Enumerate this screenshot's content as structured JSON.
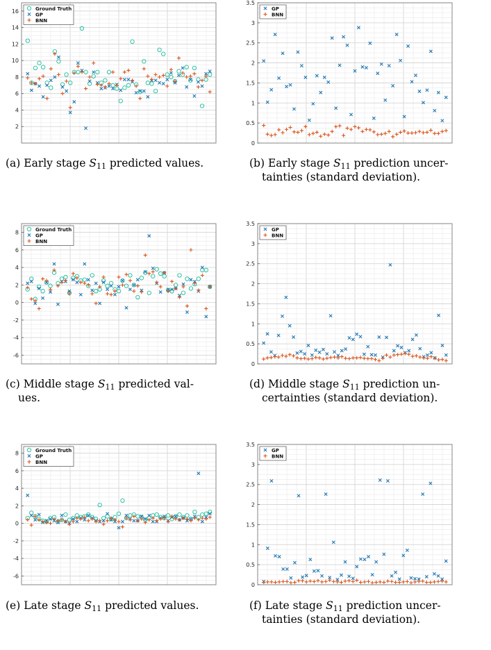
{
  "figure": {
    "captions": [
      {
        "lines": [
          "(a) Early stage ",
          "{S11}",
          " predicted values."
        ]
      },
      {
        "lines": [
          "(b) Early stage ",
          "{S11}",
          " prediction uncer-",
          "tainties (standard deviation)."
        ]
      },
      {
        "lines": [
          "(c) Middle stage ",
          "{S11}",
          " predicted val-",
          "ues."
        ]
      },
      {
        "lines": [
          "(d) Middle stage ",
          "{S11}",
          " prediction un-",
          "certainties (standard deviation)."
        ]
      },
      {
        "lines": [
          "(e) Late stage ",
          "{S11}",
          " predicted values."
        ]
      },
      {
        "lines": [
          "(f) Late stage ",
          "{S11}",
          " prediction uncer-",
          "tainties (standard deviation)."
        ]
      }
    ]
  },
  "chart_data": [
    {
      "id": "a",
      "type": "scatter",
      "ylim": [
        0,
        17
      ],
      "yticks": [
        2,
        4,
        6,
        8,
        10,
        12,
        14,
        16
      ],
      "legend_position": "top-left",
      "grid": true,
      "xlabel": "",
      "ylabel": "",
      "colors": {
        "Ground Truth": "#1abc9c",
        "GP": "#1f77b4",
        "BNN": "#d95319"
      },
      "series": [
        {
          "name": "Ground Truth",
          "marker": "circle",
          "values": [
            12.4,
            7.3,
            9.1,
            9.7,
            9.2,
            7.3,
            6.7,
            11.1,
            9.9,
            7.1,
            8.3,
            7.3,
            8.6,
            8.6,
            13.9,
            8.6,
            7.2,
            8.1,
            8.6,
            7.3,
            7.6,
            8.6,
            7.0,
            6.6,
            5.1,
            6.7,
            7.0,
            12.3,
            7.1,
            6.2,
            9.9,
            7.3,
            7.2,
            6.3,
            11.3,
            10.8,
            8.3,
            8.0,
            7.5,
            8.7,
            8.3,
            9.2,
            7.6,
            9.1,
            7.7,
            4.5,
            7.7,
            8.3
          ]
        },
        {
          "name": "GP",
          "marker": "x",
          "values": [
            8.4,
            6.4,
            7.2,
            6.9,
            5.6,
            7.0,
            7.6,
            8.0,
            10.4,
            6.8,
            6.3,
            3.7,
            5.0,
            9.7,
            8.8,
            1.8,
            7.5,
            8.6,
            7.3,
            6.6,
            6.7,
            6.9,
            6.6,
            7.1,
            6.4,
            7.7,
            7.7,
            7.4,
            6.1,
            6.3,
            6.3,
            5.6,
            7.6,
            7.6,
            7.3,
            7.2,
            7.7,
            8.5,
            7.3,
            8.2,
            9.1,
            6.8,
            7.7,
            5.7,
            7.4,
            6.9,
            8.4,
            8.7
          ]
        },
        {
          "name": "BNN",
          "marker": "plus",
          "values": [
            7.9,
            7.3,
            7.2,
            7.8,
            8.1,
            5.4,
            9.0,
            10.8,
            8.3,
            6.0,
            7.5,
            4.3,
            8.5,
            9.3,
            8.6,
            6.6,
            8.0,
            9.7,
            7.1,
            7.0,
            6.8,
            7.2,
            8.6,
            7.0,
            7.8,
            8.6,
            8.8,
            7.6,
            6.9,
            5.4,
            9.0,
            8.1,
            7.7,
            8.3,
            8.0,
            8.2,
            6.9,
            8.9,
            7.5,
            10.3,
            8.5,
            8.0,
            8.1,
            8.4,
            6.8,
            7.6,
            8.1,
            6.2
          ]
        }
      ]
    },
    {
      "id": "b",
      "type": "scatter",
      "ylim": [
        0,
        3.5
      ],
      "yticks": [
        0,
        0.5,
        1,
        1.5,
        2,
        2.5,
        3,
        3.5
      ],
      "legend_position": "top-left",
      "grid": true,
      "xlabel": "",
      "ylabel": "",
      "colors": {
        "GP": "#1f77b4",
        "BNN": "#d95319"
      },
      "series": [
        {
          "name": "GP",
          "marker": "x",
          "values": [
            2.05,
            1.02,
            1.33,
            2.71,
            1.62,
            2.24,
            1.41,
            1.45,
            0.85,
            2.27,
            1.93,
            1.64,
            0.57,
            0.98,
            1.68,
            1.26,
            1.64,
            1.52,
            2.62,
            0.87,
            1.94,
            2.65,
            2.44,
            0.71,
            1.8,
            2.88,
            1.9,
            1.88,
            2.49,
            0.62,
            1.74,
            1.97,
            1.07,
            1.93,
            1.43,
            2.71,
            2.06,
            0.66,
            2.42,
            1.53,
            1.69,
            1.29,
            1.01,
            1.32,
            2.29,
            0.81,
            1.26,
            0.56,
            1.14
          ]
        },
        {
          "name": "BNN",
          "marker": "plus",
          "values": [
            0.44,
            0.22,
            0.19,
            0.21,
            0.33,
            0.26,
            0.34,
            0.39,
            0.28,
            0.27,
            0.31,
            0.41,
            0.21,
            0.24,
            0.27,
            0.17,
            0.22,
            0.2,
            0.29,
            0.41,
            0.43,
            0.19,
            0.37,
            0.34,
            0.41,
            0.38,
            0.29,
            0.34,
            0.33,
            0.28,
            0.21,
            0.22,
            0.24,
            0.29,
            0.16,
            0.22,
            0.27,
            0.3,
            0.25,
            0.25,
            0.26,
            0.29,
            0.26,
            0.27,
            0.32,
            0.24,
            0.24,
            0.29,
            0.31
          ]
        }
      ]
    },
    {
      "id": "c",
      "type": "scatter",
      "ylim": [
        -7,
        9
      ],
      "yticks": [
        -6,
        -4,
        -2,
        0,
        2,
        4,
        6,
        8
      ],
      "legend_position": "top-left",
      "grid": true,
      "xlabel": "",
      "ylabel": "",
      "colors": {
        "Ground Truth": "#1abc9c",
        "GP": "#1f77b4",
        "BNN": "#d95319"
      },
      "series": [
        {
          "name": "Ground Truth",
          "marker": "circle",
          "values": [
            1.5,
            2.7,
            0.4,
            1.8,
            1.3,
            2.3,
            1.9,
            3.4,
            2.2,
            2.7,
            2.9,
            1.1,
            2.8,
            3.0,
            2.5,
            2.6,
            1.9,
            3.1,
            1.3,
            1.5,
            2.5,
            1.9,
            2.2,
            1.5,
            1.3,
            2.5,
            1.9,
            3.1,
            2.0,
            0.6,
            2.8,
            3.4,
            1.1,
            3.0,
            3.8,
            3.3,
            3.0,
            1.4,
            1.3,
            2.0,
            3.1,
            1.1,
            2.7,
            1.6,
            2.1,
            2.7,
            3.7,
            3.7,
            1.8
          ]
        },
        {
          "name": "GP",
          "marker": "x",
          "values": [
            2.2,
            2.4,
            -0.1,
            1.6,
            0.5,
            2.3,
            1.2,
            4.4,
            -0.2,
            2.4,
            2.4,
            1.3,
            2.6,
            2.3,
            0.9,
            4.4,
            2.6,
            1.4,
            2.2,
            -0.1,
            2.3,
            1.5,
            1.9,
            0.9,
            1.8,
            2.5,
            -0.6,
            1.5,
            2.0,
            2.6,
            1.4,
            3.5,
            7.6,
            3.9,
            2.2,
            1.2,
            3.4,
            1.5,
            1.5,
            1.6,
            0.8,
            2.1,
            -1.1,
            2.6,
            2.4,
            1.3,
            4.0,
            -1.6,
            1.8
          ]
        },
        {
          "name": "BNN",
          "marker": "plus",
          "values": [
            1.7,
            0.4,
            0.2,
            -0.7,
            2.7,
            2.5,
            1.5,
            3.7,
            1.9,
            2.3,
            2.5,
            1.0,
            3.3,
            2.8,
            2.3,
            2.2,
            2.0,
            1.0,
            -0.1,
            1.8,
            2.9,
            1.0,
            0.9,
            1.3,
            2.9,
            2.0,
            3.2,
            2.5,
            1.3,
            1.9,
            1.2,
            5.4,
            3.3,
            3.5,
            2.3,
            1.8,
            3.4,
            1.3,
            2.4,
            1.6,
            0.6,
            1.8,
            -0.4,
            6.0,
            2.2,
            1.4,
            3.1,
            -0.7,
            1.8
          ]
        }
      ]
    },
    {
      "id": "d",
      "type": "scatter",
      "ylim": [
        0,
        3.5
      ],
      "yticks": [
        0,
        0.5,
        1,
        1.5,
        2,
        2.5,
        3,
        3.5
      ],
      "legend_position": "top-left",
      "grid": true,
      "xlabel": "",
      "ylabel": "",
      "colors": {
        "GP": "#1f77b4",
        "BNN": "#d95319"
      },
      "series": [
        {
          "name": "GP",
          "marker": "x",
          "values": [
            0.52,
            0.75,
            0.3,
            0.21,
            0.71,
            1.19,
            1.66,
            0.95,
            0.67,
            0.27,
            0.31,
            0.25,
            0.46,
            0.22,
            0.34,
            0.29,
            0.36,
            0.25,
            1.2,
            0.3,
            0.21,
            0.33,
            0.37,
            0.65,
            0.61,
            0.74,
            0.68,
            0.24,
            0.43,
            0.23,
            0.22,
            0.67,
            0.17,
            0.66,
            2.47,
            0.33,
            0.45,
            0.41,
            0.28,
            0.33,
            0.61,
            0.72,
            0.38,
            0.18,
            0.22,
            0.28,
            0.15,
            1.21,
            0.46,
            0.22
          ]
        },
        {
          "name": "BNN",
          "marker": "plus",
          "values": [
            0.12,
            0.15,
            0.16,
            0.18,
            0.17,
            0.21,
            0.19,
            0.23,
            0.2,
            0.15,
            0.13,
            0.14,
            0.12,
            0.13,
            0.16,
            0.15,
            0.12,
            0.14,
            0.16,
            0.17,
            0.15,
            0.18,
            0.14,
            0.13,
            0.15,
            0.15,
            0.16,
            0.14,
            0.13,
            0.13,
            0.11,
            0.08,
            0.14,
            0.22,
            0.17,
            0.22,
            0.23,
            0.24,
            0.26,
            0.24,
            0.19,
            0.2,
            0.17,
            0.15,
            0.14,
            0.18,
            0.14,
            0.1,
            0.11,
            0.08
          ]
        }
      ]
    },
    {
      "id": "e",
      "type": "scatter",
      "ylim": [
        -7,
        9
      ],
      "yticks": [
        -6,
        -4,
        -2,
        0,
        2,
        4,
        6,
        8
      ],
      "legend_position": "top-left",
      "grid": true,
      "xlabel": "",
      "ylabel": "",
      "colors": {
        "Ground Truth": "#1abc9c",
        "GP": "#1f77b4",
        "BNN": "#d95319"
      },
      "series": [
        {
          "name": "Ground Truth",
          "marker": "circle",
          "values": [
            0.6,
            1.2,
            0.8,
            0.5,
            0.3,
            0.2,
            0.6,
            0.7,
            0.2,
            0.4,
            1.0,
            0.4,
            0.6,
            0.9,
            0.7,
            0.8,
            1.0,
            0.7,
            0.5,
            2.1,
            0.6,
            0.8,
            0.5,
            0.7,
            1.1,
            2.6,
            0.6,
            0.9,
            1.0,
            0.8,
            0.7,
            0.4,
            0.6,
            0.9,
            1.0,
            0.7,
            0.6,
            0.9,
            0.5,
            0.8,
            1.0,
            0.7,
            0.9,
            0.5,
            1.3,
            0.7,
            1.0,
            1.1,
            1.3
          ]
        },
        {
          "name": "GP",
          "marker": "x",
          "values": [
            3.2,
            0.9,
            0.4,
            1.0,
            0.1,
            0.3,
            0.5,
            0.3,
            0.1,
            0.9,
            0.2,
            0.0,
            0.5,
            0.2,
            0.6,
            0.4,
            0.9,
            0.6,
            0.3,
            0.2,
            0.3,
            1.1,
            0.4,
            0.2,
            -0.5,
            0.2,
            0.9,
            0.5,
            0.3,
            0.3,
            0.8,
            0.5,
            0.9,
            0.2,
            0.2,
            0.6,
            0.8,
            0.3,
            0.7,
            0.8,
            0.4,
            0.6,
            0.3,
            0.5,
            0.8,
            5.7,
            0.2,
            0.7,
            1.1
          ]
        },
        {
          "name": "BNN",
          "marker": "plus",
          "values": [
            0.4,
            -0.2,
            0.8,
            0.4,
            0.2,
            0.1,
            0.0,
            0.5,
            0.3,
            0.4,
            0.2,
            -0.1,
            0.2,
            0.6,
            0.5,
            0.7,
            0.3,
            0.5,
            0.2,
            0.3,
            -0.1,
            0.3,
            0.6,
            0.4,
            0.2,
            -0.4,
            0.6,
            0.4,
            0.8,
            0.3,
            0.5,
            0.1,
            0.4,
            0.6,
            0.3,
            0.5,
            0.6,
            0.2,
            0.8,
            0.5,
            0.4,
            0.6,
            0.5,
            0.3,
            0.6,
            0.4,
            0.6,
            0.5,
            0.7
          ]
        }
      ]
    },
    {
      "id": "f",
      "type": "scatter",
      "ylim": [
        0,
        3.5
      ],
      "yticks": [
        0,
        0.5,
        1,
        1.5,
        2,
        2.5,
        3,
        3.5
      ],
      "legend_position": "top-left",
      "grid": true,
      "xlabel": "",
      "ylabel": "",
      "colors": {
        "GP": "#1f77b4",
        "BNN": "#d95319"
      },
      "series": [
        {
          "name": "GP",
          "marker": "x",
          "values": [
            0.08,
            0.91,
            2.59,
            0.72,
            0.7,
            0.39,
            0.39,
            0.17,
            0.55,
            2.22,
            0.19,
            0.23,
            0.63,
            0.34,
            0.35,
            0.22,
            2.26,
            0.18,
            1.06,
            0.13,
            0.24,
            0.57,
            0.21,
            0.16,
            0.45,
            0.64,
            0.63,
            0.7,
            0.25,
            0.57,
            2.61,
            0.76,
            2.59,
            0.22,
            0.31,
            0.14,
            0.73,
            0.86,
            0.17,
            0.15,
            0.14,
            2.26,
            0.2,
            2.53,
            0.27,
            0.22,
            0.14,
            0.59
          ]
        },
        {
          "name": "BNN",
          "marker": "plus",
          "values": [
            0.06,
            0.07,
            0.07,
            0.06,
            0.07,
            0.08,
            0.08,
            0.05,
            0.06,
            0.1,
            0.1,
            0.07,
            0.09,
            0.08,
            0.1,
            0.07,
            0.08,
            0.11,
            0.08,
            0.07,
            0.06,
            0.09,
            0.1,
            0.08,
            0.11,
            0.06,
            0.07,
            0.08,
            0.05,
            0.06,
            0.07,
            0.06,
            0.09,
            0.08,
            0.06,
            0.06,
            0.07,
            0.08,
            0.05,
            0.07,
            0.08,
            0.09,
            0.06,
            0.06,
            0.07,
            0.08,
            0.09,
            0.07
          ]
        }
      ]
    }
  ]
}
